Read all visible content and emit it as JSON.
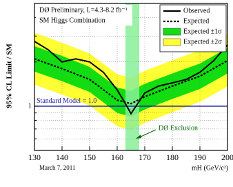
{
  "chart_data": {
    "type": "line",
    "title": "DØ Preliminary, L=4.3-8.2 fb⁻¹",
    "subtitle": "SM Higgs Combination",
    "ylabel": "95% CL Limit / SM",
    "xlabel": "mH (GeV/c²)",
    "date": "March 7, 2011",
    "xlim": [
      130,
      200
    ],
    "xticks": [
      130,
      140,
      150,
      160,
      170,
      180,
      190,
      200
    ],
    "ylim": [
      0.5,
      5
    ],
    "yticks": [
      1
    ],
    "minor_yticks": [
      0.6,
      0.7,
      0.8,
      0.9,
      2,
      3,
      4
    ],
    "log_y": true,
    "grid": true,
    "legend": "top-right",
    "series": [
      {
        "name": "Observed",
        "color": "#000000",
        "style": "solid",
        "x": [
          130,
          135,
          140,
          145,
          150,
          155,
          160,
          163,
          165,
          170,
          175,
          180,
          185,
          190,
          195,
          200
        ],
        "values": [
          2.76,
          2.42,
          2.0,
          2.1,
          2.0,
          1.7,
          1.29,
          1.04,
          0.89,
          1.23,
          1.37,
          1.44,
          1.52,
          1.7,
          2.04,
          2.61
        ]
      },
      {
        "name": "Expected",
        "color": "#000000",
        "style": "dashed",
        "x": [
          130,
          140,
          150,
          160,
          165,
          170,
          180,
          190,
          200
        ],
        "values": [
          2.1,
          1.8,
          1.52,
          1.1,
          1.04,
          1.16,
          1.37,
          1.6,
          2.04
        ]
      }
    ],
    "bands": [
      {
        "name": "Expected ±2σ",
        "color": "#ffff33",
        "x": [
          130,
          140,
          150,
          160,
          165,
          170,
          180,
          190,
          200
        ],
        "low": [
          1.4,
          1.2,
          1.01,
          0.73,
          0.69,
          0.77,
          0.91,
          1.07,
          1.36
        ],
        "high": [
          3.15,
          2.7,
          2.28,
          1.65,
          1.56,
          1.74,
          2.05,
          2.4,
          3.06
        ]
      },
      {
        "name": "Expected ±1σ",
        "color": "#11dd11",
        "x": [
          130,
          140,
          150,
          160,
          165,
          170,
          180,
          190,
          200
        ],
        "low": [
          1.72,
          1.48,
          1.25,
          0.9,
          0.85,
          0.95,
          1.12,
          1.31,
          1.67
        ],
        "high": [
          2.56,
          2.2,
          1.85,
          1.34,
          1.27,
          1.42,
          1.67,
          1.95,
          2.49
        ]
      }
    ],
    "reference": {
      "label": "Standard Model = 1.0",
      "value": 1,
      "color": "#1a1aa0"
    },
    "exclusion": {
      "label": "DØ Exclusion",
      "range": [
        163,
        168
      ],
      "color": "#88ee99"
    }
  }
}
